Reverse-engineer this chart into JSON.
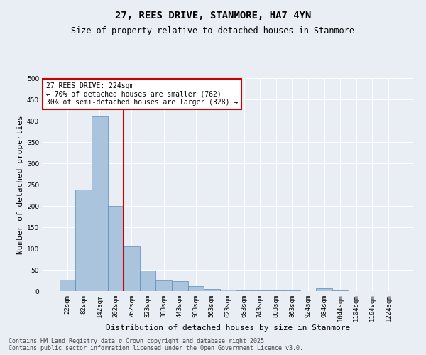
{
  "title": "27, REES DRIVE, STANMORE, HA7 4YN",
  "subtitle": "Size of property relative to detached houses in Stanmore",
  "xlabel": "Distribution of detached houses by size in Stanmore",
  "ylabel": "Number of detached properties",
  "footer_line1": "Contains HM Land Registry data © Crown copyright and database right 2025.",
  "footer_line2": "Contains public sector information licensed under the Open Government Licence v3.0.",
  "categories": [
    "22sqm",
    "82sqm",
    "142sqm",
    "202sqm",
    "262sqm",
    "323sqm",
    "383sqm",
    "443sqm",
    "503sqm",
    "563sqm",
    "623sqm",
    "683sqm",
    "743sqm",
    "803sqm",
    "863sqm",
    "924sqm",
    "984sqm",
    "1044sqm",
    "1104sqm",
    "1164sqm",
    "1224sqm"
  ],
  "bar_values": [
    27,
    238,
    410,
    200,
    105,
    48,
    25,
    23,
    12,
    5,
    4,
    2,
    1,
    1,
    1,
    0,
    6,
    1,
    0,
    0,
    0
  ],
  "bar_color": "#aac4dd",
  "bar_edge_color": "#5b8db8",
  "bar_edge_width": 0.5,
  "background_color": "#e8eef4",
  "grid_color": "#ffffff",
  "annotation_text": "27 REES DRIVE: 224sqm\n← 70% of detached houses are smaller (762)\n30% of semi-detached houses are larger (328) →",
  "vline_color": "#cc0000",
  "vline_x_index": 3,
  "annotation_box_color": "#ffffff",
  "annotation_box_edge": "#cc0000",
  "ylim": [
    0,
    500
  ],
  "title_fontsize": 10,
  "subtitle_fontsize": 8.5,
  "xlabel_fontsize": 8,
  "ylabel_fontsize": 8,
  "tick_fontsize": 6.5,
  "annotation_fontsize": 7,
  "footer_fontsize": 6
}
